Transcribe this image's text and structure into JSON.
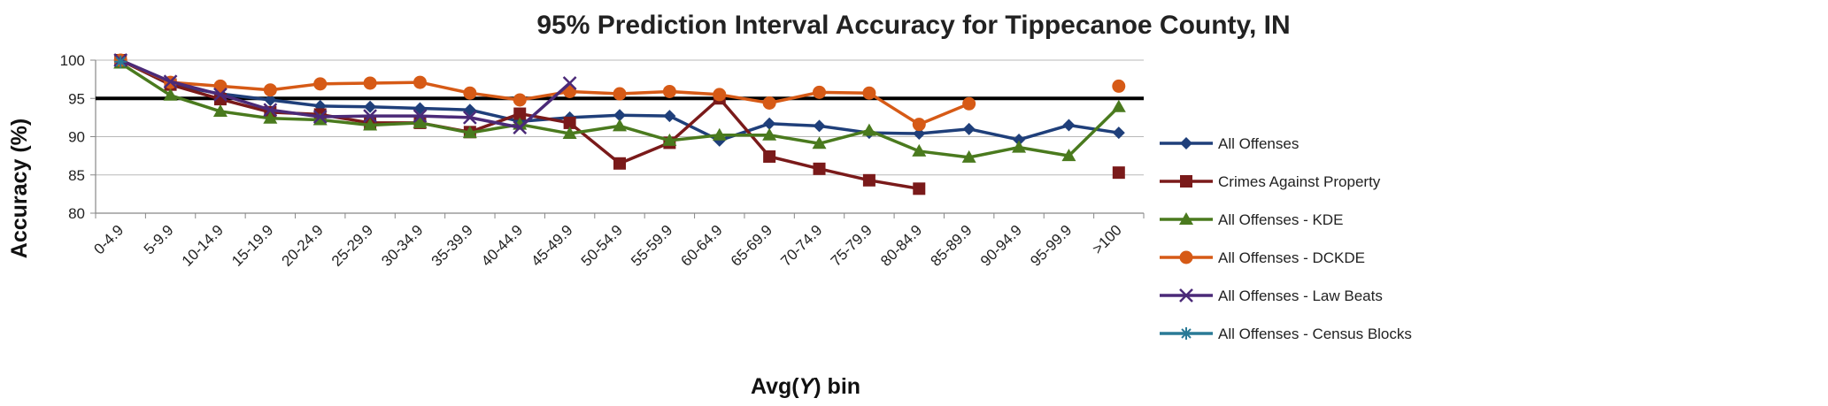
{
  "chart_data": {
    "type": "line",
    "title": "95% Prediction Interval Accuracy for Tippecanoe County, IN",
    "xlabel_prefix": "Avg(",
    "xlabel_var": "Y",
    "xlabel_suffix": ") bin",
    "ylabel": "Accuracy (%)",
    "ylim": [
      80,
      100
    ],
    "yticks": [
      80,
      85,
      90,
      95,
      100
    ],
    "grid": "horizontal",
    "legend_position": "right",
    "reference_line": 95,
    "categories": [
      "0-4.9",
      "5-9.9",
      "10-14.9",
      "15-19.9",
      "20-24.9",
      "25-29.9",
      "30-34.9",
      "35-39.9",
      "40-44.9",
      "45-49.9",
      "50-54.9",
      "55-59.9",
      "60-64.9",
      "65-69.9",
      "70-74.9",
      "75-79.9",
      "80-84.9",
      "85-89.9",
      "90-94.9",
      "95-99.9",
      ">100"
    ],
    "series": [
      {
        "name": "All Offenses",
        "color": "#1f3f7a",
        "marker": "diamond",
        "values": [
          100,
          96.8,
          95.6,
          94.8,
          94.0,
          93.9,
          93.7,
          93.5,
          92.0,
          92.5,
          92.8,
          92.7,
          89.5,
          91.7,
          91.4,
          90.5,
          90.4,
          91.0,
          89.6,
          91.5,
          90.5
        ]
      },
      {
        "name": "Crimes Against Property",
        "color": "#7a1a1a",
        "marker": "square",
        "values": [
          100,
          96.8,
          94.9,
          93.2,
          92.9,
          91.8,
          91.8,
          90.6,
          93.0,
          91.8,
          86.5,
          89.2,
          95.0,
          87.4,
          85.8,
          84.3,
          83.2,
          null,
          null,
          null,
          85.3
        ]
      },
      {
        "name": "All Offenses - KDE",
        "color": "#4a7a1e",
        "marker": "triangle",
        "values": [
          99.6,
          95.4,
          93.3,
          92.4,
          92.2,
          91.5,
          91.8,
          90.5,
          91.6,
          90.4,
          91.4,
          89.5,
          90.2,
          90.2,
          89.1,
          90.8,
          88.1,
          87.3,
          88.6,
          87.5,
          93.9
        ]
      },
      {
        "name": "All Offenses - DCKDE",
        "color": "#d65a16",
        "marker": "circle",
        "values": [
          100,
          97.1,
          96.6,
          96.1,
          96.9,
          97.0,
          97.1,
          95.7,
          94.8,
          95.9,
          95.6,
          95.9,
          95.5,
          94.4,
          95.8,
          95.7,
          91.6,
          94.3,
          null,
          null,
          96.6
        ]
      },
      {
        "name": "All Offenses - Law Beats",
        "color": "#4b2a78",
        "marker": "x",
        "values": [
          100,
          97.2,
          95.5,
          93.5,
          92.6,
          92.7,
          92.7,
          92.5,
          91.2,
          97.0,
          null,
          null,
          null,
          null,
          null,
          null,
          null,
          null,
          null,
          null,
          null
        ]
      },
      {
        "name": "All Offenses - Census Blocks",
        "color": "#2a7a96",
        "marker": "star",
        "values": [
          99.8,
          null,
          null,
          null,
          null,
          null,
          null,
          null,
          null,
          null,
          null,
          null,
          null,
          null,
          null,
          null,
          null,
          null,
          null,
          null,
          null
        ]
      }
    ]
  }
}
